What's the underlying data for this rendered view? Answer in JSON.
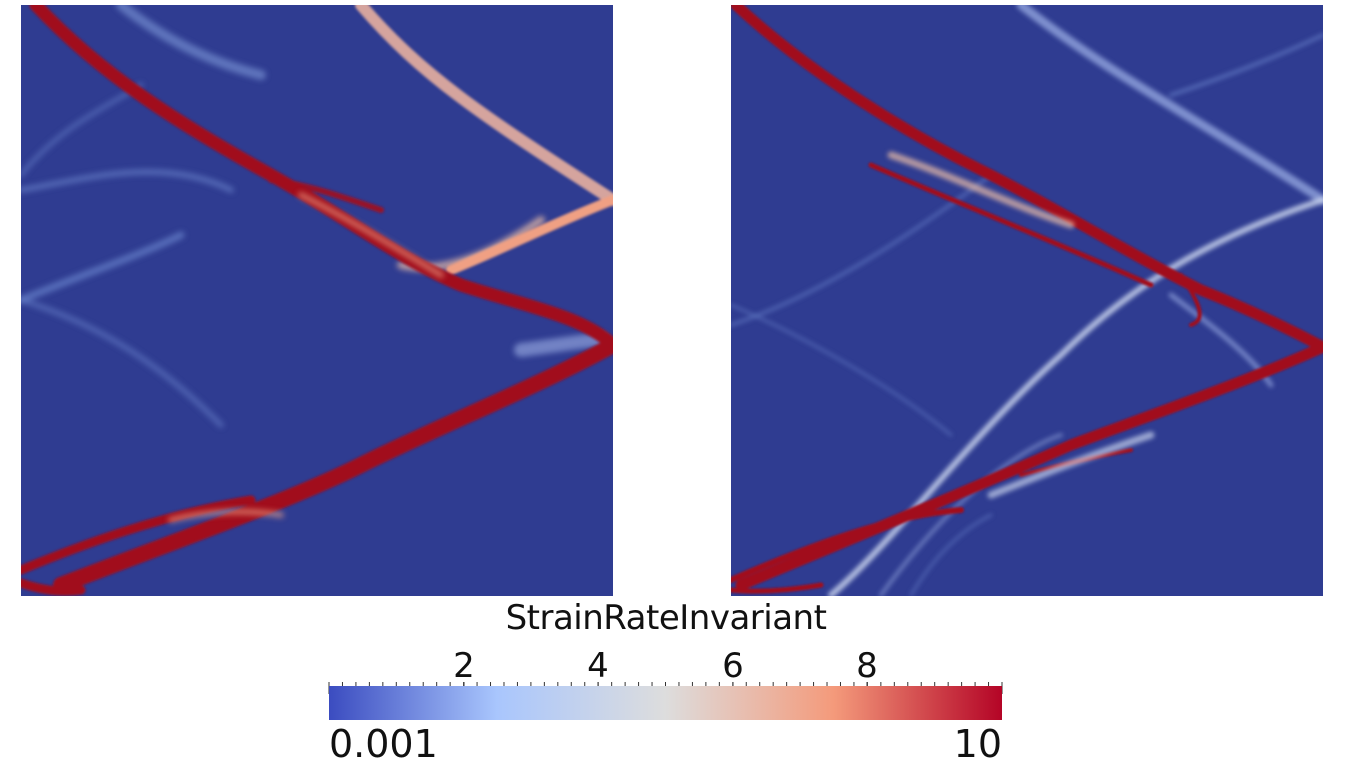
{
  "legend": {
    "title": "StrainRateInvariant",
    "range_min": "0.001",
    "range_max": "10",
    "tick_labels": [
      "2",
      "4",
      "6",
      "8"
    ],
    "colors": [
      "#3b4cc0",
      "#a9c6fd",
      "#dddddd",
      "#f49a7b",
      "#b40426"
    ]
  },
  "colors": {
    "background_field": "#2f3c91",
    "band_hot": "#a10d1f",
    "band_warm": "#f0a083",
    "band_cool": "#7f99d8"
  }
}
